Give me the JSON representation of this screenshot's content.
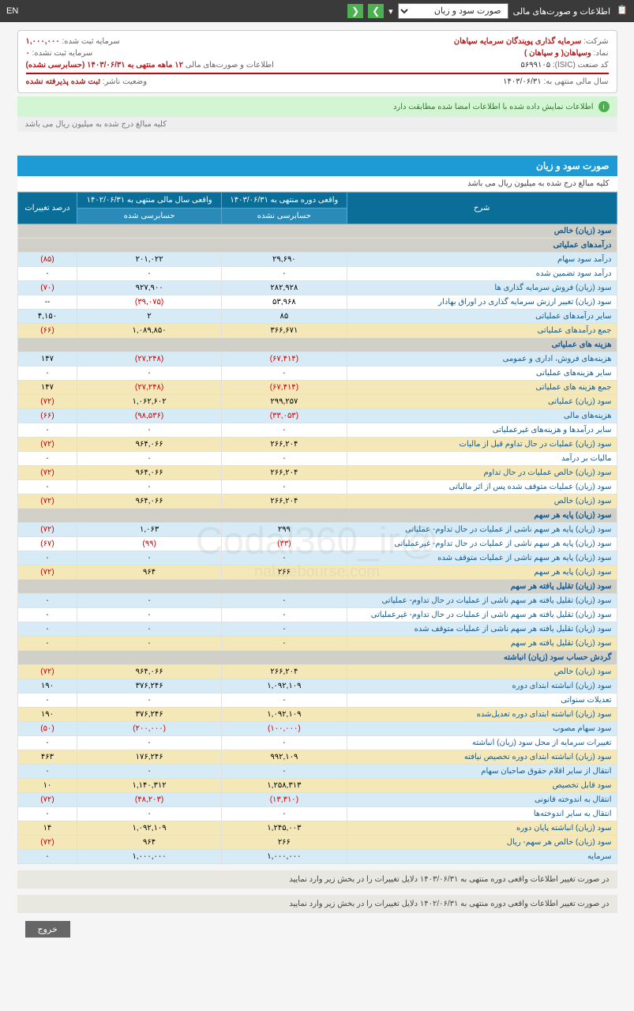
{
  "topbar": {
    "title": "اطلاعات و صورت‌های مالی",
    "dropdown": "صورت سود و زیان",
    "lang": "EN"
  },
  "info": {
    "company_label": "شرکت:",
    "company": "سرمایه گذاری پویندگان سرمایه سپاهان",
    "capital_reg_label": "سرمایه ثبت شده:",
    "capital_reg": "۱,۰۰۰,۰۰۰",
    "symbol_label": "نماد:",
    "symbol": "وسپاهان( و سپاهان )",
    "capital_unreg_label": "سرمایه ثبت نشده:",
    "capital_unreg": "۰",
    "isic_label": "کد صنعت (ISIC):",
    "isic": "۵۶۹۹۱۰۵",
    "report_label": "اطلاعات و صورت‌های مالی",
    "report": "۱۲ ماهه منتهی به ۱۴۰۳/۰۶/۳۱ (حسابرسی نشده)",
    "fiscal_label": "سال مالی منتهی به:",
    "fiscal": "۱۴۰۳/۰۶/۳۱",
    "pub_status_label": "وضعیت ناشر:",
    "pub_status": "ثبت شده پذیرفته نشده"
  },
  "green_msg": "اطلاعات نمایش داده شده با اطلاعات امضا شده مطابقت دارد",
  "amounts_note": "کلیه مبالغ درج شده به میلیون ریال می باشد",
  "section": {
    "title": "صورت سود و زیان",
    "sub": "کلیه مبالغ درج شده به میلیون ریال می باشد"
  },
  "headers": {
    "desc": "شرح",
    "col1": "واقعی دوره منتهی به ۱۴۰۳/۰۶/۳۱",
    "col1sub": "حسابرسی نشده",
    "col2": "واقعی سال مالی منتهی به ۱۴۰۲/۰۶/۳۱",
    "col2sub": "حسابرسی شده",
    "col3": "درصد تغییرات"
  },
  "rows": [
    {
      "type": "header",
      "desc": "سود (زیان) خالص"
    },
    {
      "type": "header",
      "desc": "درآمدهای عملیاتی"
    },
    {
      "type": "blue",
      "desc": "درآمد سود سهام",
      "c1": "۲۹,۶۹۰",
      "c2": "۲۰۱,۰۲۲",
      "c3": "(۸۵)",
      "c3neg": true
    },
    {
      "type": "white",
      "desc": "درآمد سود تضمین شده",
      "c1": "۰",
      "c2": "۰",
      "c3": "۰"
    },
    {
      "type": "blue",
      "desc": "سود (زیان) فروش سرمایه گذاری ها",
      "c1": "۲۸۲,۹۲۸",
      "c2": "۹۲۷,۹۰۰",
      "c3": "(۷۰)",
      "c3neg": true
    },
    {
      "type": "white",
      "desc": "سود (زیان) تغییر ارزش سرمایه گذاری در اوراق بهادار",
      "c1": "۵۳,۹۶۸",
      "c2": "(۳۹,۰۷۵)",
      "c2neg": true,
      "c3": "--"
    },
    {
      "type": "blue",
      "desc": "سایر درآمدهای عملیاتی",
      "c1": "۸۵",
      "c2": "۲",
      "c3": "۴,۱۵۰"
    },
    {
      "type": "yellow",
      "desc": "جمع درآمدهای عملیاتی",
      "c1": "۳۶۶,۶۷۱",
      "c2": "۱,۰۸۹,۸۵۰",
      "c3": "(۶۶)",
      "c3neg": true
    },
    {
      "type": "header",
      "desc": "هزینه های عملیاتی"
    },
    {
      "type": "blue",
      "desc": "هزینه‌های فروش، اداری و عمومی",
      "c1": "(۶۷,۴۱۴)",
      "c1neg": true,
      "c2": "(۲۷,۲۴۸)",
      "c2neg": true,
      "c3": "۱۴۷"
    },
    {
      "type": "white",
      "desc": "سایر هزینه‌های عملیاتی",
      "c1": "۰",
      "c2": "۰",
      "c3": "۰"
    },
    {
      "type": "yellow",
      "desc": "جمع هزینه های عملیاتی",
      "c1": "(۶۷,۴۱۴)",
      "c1neg": true,
      "c2": "(۲۷,۲۴۸)",
      "c2neg": true,
      "c3": "۱۴۷"
    },
    {
      "type": "yellow",
      "desc": "سود (زیان) عملیاتی",
      "c1": "۲۹۹,۲۵۷",
      "c2": "۱,۰۶۲,۶۰۲",
      "c3": "(۷۲)",
      "c3neg": true
    },
    {
      "type": "blue",
      "desc": "هزینه‌های مالی",
      "c1": "(۳۳,۰۵۳)",
      "c1neg": true,
      "c2": "(۹۸,۵۳۶)",
      "c2neg": true,
      "c3": "(۶۶)",
      "c3neg": true
    },
    {
      "type": "white",
      "desc": "سایر درآمدها و هزینه‌های غیرعملیاتی",
      "c1": "۰",
      "c2": "۰",
      "c3": "۰"
    },
    {
      "type": "yellow",
      "desc": "سود (زیان) عملیات در حال تداوم قبل از مالیات",
      "c1": "۲۶۶,۲۰۴",
      "c2": "۹۶۴,۰۶۶",
      "c3": "(۷۲)",
      "c3neg": true
    },
    {
      "type": "white",
      "desc": "مالیات بر درآمد",
      "c1": "۰",
      "c2": "۰",
      "c3": "۰"
    },
    {
      "type": "yellow",
      "desc": "سود (زیان) خالص عملیات در حال تداوم",
      "c1": "۲۶۶,۲۰۴",
      "c2": "۹۶۴,۰۶۶",
      "c3": "(۷۲)",
      "c3neg": true
    },
    {
      "type": "white",
      "desc": "سود (زیان) عملیات متوقف شده پس از اثر مالیاتی",
      "c1": "۰",
      "c2": "۰",
      "c3": "۰"
    },
    {
      "type": "yellow",
      "desc": "سود (زیان) خالص",
      "c1": "۲۶۶,۲۰۴",
      "c2": "۹۶۴,۰۶۶",
      "c3": "(۷۲)",
      "c3neg": true
    },
    {
      "type": "header",
      "desc": "سود (زیان) پایه هر سهم"
    },
    {
      "type": "blue",
      "desc": "سود (زیان) پایه هر سهم ناشی از عملیات در حال تداوم- عملیاتی",
      "c1": "۲۹۹",
      "c2": "۱,۰۶۳",
      "c3": "(۷۲)",
      "c3neg": true
    },
    {
      "type": "white",
      "desc": "سود (زیان) پایه هر سهم ناشی از عملیات در حال تداوم- غیرعملیاتی",
      "c1": "(۳۳)",
      "c1neg": true,
      "c2": "(۹۹)",
      "c2neg": true,
      "c3": "(۶۷)",
      "c3neg": true
    },
    {
      "type": "blue",
      "desc": "سود (زیان) پایه هر سهم ناشی از عملیات متوقف شده",
      "c1": "۰",
      "c2": "۰",
      "c3": "۰"
    },
    {
      "type": "yellow",
      "desc": "سود (زیان) پایه هر سهم",
      "c1": "۲۶۶",
      "c2": "۹۶۴",
      "c3": "(۷۲)",
      "c3neg": true
    },
    {
      "type": "header",
      "desc": "سود (زیان) تقلیل یافته هر سهم"
    },
    {
      "type": "blue",
      "desc": "سود (زیان) تقلیل یافته هر سهم ناشی از عملیات در حال تداوم- عملیاتی",
      "c1": "۰",
      "c2": "۰",
      "c3": "۰"
    },
    {
      "type": "white",
      "desc": "سود (زیان) تقلیل یافته هر سهم ناشی از عملیات در حال تداوم- غیرعملیاتی",
      "c1": "۰",
      "c2": "۰",
      "c3": "۰"
    },
    {
      "type": "blue",
      "desc": "سود (زیان) تقلیل یافته هر سهم ناشی از عملیات متوقف شده",
      "c1": "۰",
      "c2": "۰",
      "c3": "۰"
    },
    {
      "type": "yellow",
      "desc": "سود (زیان) تقلیل یافته هر سهم",
      "c1": "۰",
      "c2": "۰",
      "c3": "۰"
    },
    {
      "type": "header",
      "desc": "گردش حساب سود (زیان) انباشته"
    },
    {
      "type": "yellow",
      "desc": "سود (زیان) خالص",
      "c1": "۲۶۶,۲۰۴",
      "c2": "۹۶۴,۰۶۶",
      "c3": "(۷۲)",
      "c3neg": true
    },
    {
      "type": "blue",
      "desc": "سود (زیان) انباشته ابتدای دوره",
      "c1": "۱,۰۹۲,۱۰۹",
      "c2": "۳۷۶,۲۴۶",
      "c3": "۱۹۰"
    },
    {
      "type": "white",
      "desc": "تعدیلات سنواتی",
      "c1": "۰",
      "c2": "۰",
      "c3": "۰"
    },
    {
      "type": "yellow",
      "desc": "سود (زیان) انباشته ابتدای دوره تعدیل‌شده",
      "c1": "۱,۰۹۲,۱۰۹",
      "c2": "۳۷۶,۲۴۶",
      "c3": "۱۹۰"
    },
    {
      "type": "blue",
      "desc": "سود سهام‌ مصوب",
      "c1": "(۱۰۰,۰۰۰)",
      "c1neg": true,
      "c2": "(۲۰۰,۰۰۰)",
      "c2neg": true,
      "c3": "(۵۰)",
      "c3neg": true
    },
    {
      "type": "white",
      "desc": "تغییرات سرمایه از محل سود (زیان) انباشته",
      "c1": "۰",
      "c2": "۰",
      "c3": "۰"
    },
    {
      "type": "yellow",
      "desc": "سود (زیان) انباشته ابتدای دوره تخصیص نیافته",
      "c1": "۹۹۲,۱۰۹",
      "c2": "۱۷۶,۲۴۶",
      "c3": "۴۶۳"
    },
    {
      "type": "blue",
      "desc": "انتقال از سایر اقلام حقوق صاحبان سهام",
      "c1": "۰",
      "c2": "۰",
      "c3": "۰"
    },
    {
      "type": "yellow",
      "desc": "سود قابل تخصیص",
      "c1": "۱,۲۵۸,۳۱۳",
      "c2": "۱,۱۴۰,۳۱۲",
      "c3": "۱۰"
    },
    {
      "type": "blue",
      "desc": "انتقال به اندوخته‌ قانونی",
      "c1": "(۱۳,۳۱۰)",
      "c1neg": true,
      "c2": "(۴۸,۲۰۳)",
      "c2neg": true,
      "c3": "(۷۲)",
      "c3neg": true
    },
    {
      "type": "white",
      "desc": "انتقال به سایر اندوخته‌ها",
      "c1": "۰",
      "c2": "۰",
      "c3": "۰"
    },
    {
      "type": "yellow",
      "desc": "سود (زیان) انباشته‌ پايان‌ دوره",
      "c1": "۱,۲۴۵,۰۰۳",
      "c2": "۱,۰۹۲,۱۰۹",
      "c3": "۱۴"
    },
    {
      "type": "yellow",
      "desc": "سود (زیان) خالص هر سهم- ریال",
      "c1": "۲۶۶",
      "c2": "۹۶۴",
      "c3": "(۷۲)",
      "c3neg": true
    },
    {
      "type": "blue",
      "desc": "سرمایه",
      "c1": "۱,۰۰۰,۰۰۰",
      "c2": "۱,۰۰۰,۰۰۰",
      "c3": "۰"
    }
  ],
  "notes": [
    "در صورت تغییر اطلاعات واقعی دوره منتهی به ۱۴۰۳/۰۶/۳۱ دلایل تغییرات را در بخش زیر وارد نمایید",
    "در صورت تغییر اطلاعات واقعی دوره منتهی به ۱۴۰۲/۰۶/۳۱ دلایل تغییرات را در بخش زیر وارد نمایید"
  ],
  "exit": "خروج",
  "watermark": {
    "main": "@Codal360_ir",
    "sub": "nabzebourse.com"
  }
}
